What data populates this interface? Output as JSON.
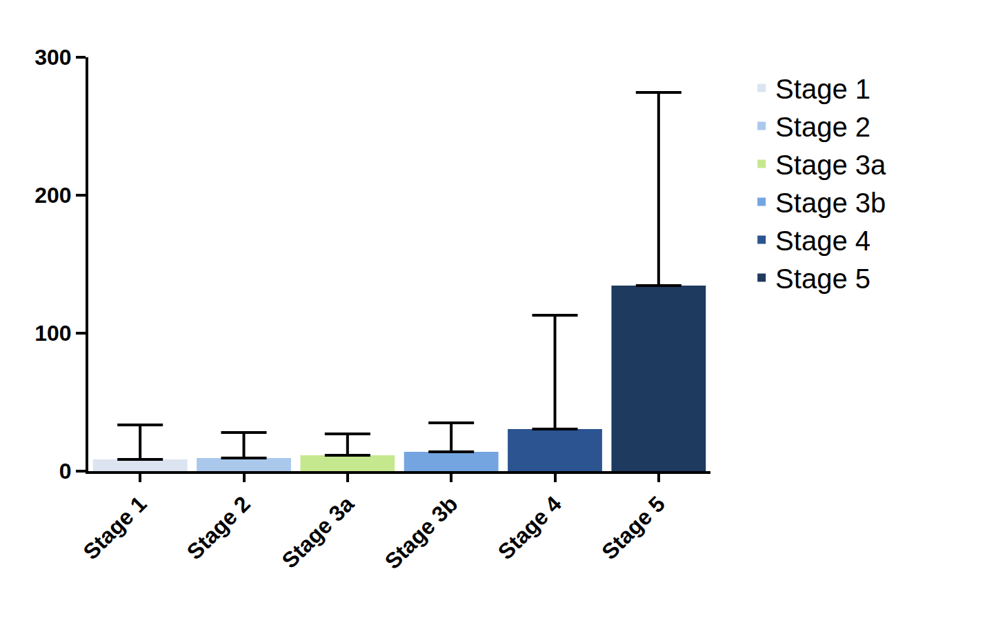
{
  "chart_data": {
    "type": "bar",
    "categories": [
      "Stage 1",
      "Stage 2",
      "Stage 3a",
      "Stage 3b",
      "Stage 4",
      "Stage 5"
    ],
    "values": [
      8.5,
      9.5,
      11.5,
      14,
      30.5,
      134.5
    ],
    "errors": [
      25,
      18.5,
      15.5,
      21,
      82.5,
      140
    ],
    "colors": [
      "#dbe4f0",
      "#a9c8ec",
      "#c5e88e",
      "#74a5e0",
      "#2b5490",
      "#1f3a5f"
    ],
    "ylim": [
      0,
      300
    ],
    "yticks": [
      0,
      100,
      200,
      300
    ],
    "grid": false,
    "legend": "right"
  }
}
